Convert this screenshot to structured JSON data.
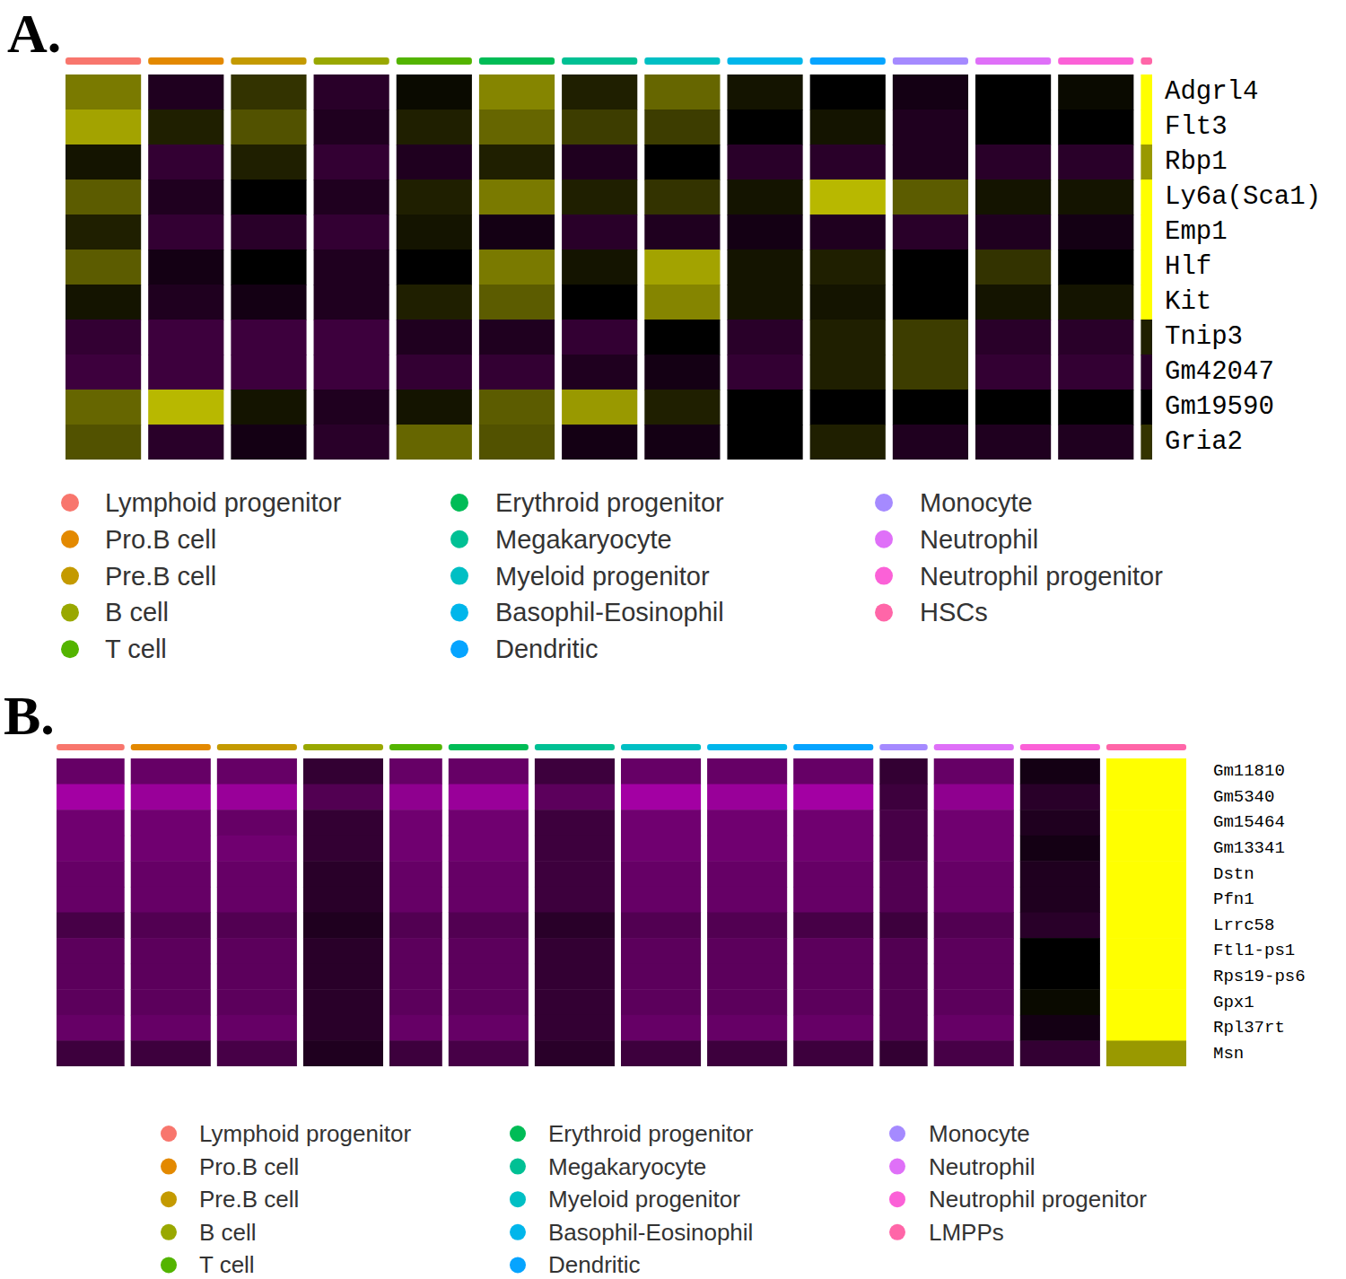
{
  "chart_data": [
    {
      "type": "heatmap",
      "title": "A.",
      "rows": [
        "Adgrl4",
        "Flt3",
        "Rbp1",
        "Ly6a(Sca1)",
        "Emp1",
        "Hlf",
        "Kit",
        "Tnip3",
        "Gm42047",
        "Gm19590",
        "Gria2"
      ],
      "columns": [
        "Lymphoid progenitor",
        "Pro.B cell",
        "Pre.B cell",
        "B cell",
        "T cell",
        "Erythroid progenitor",
        "Megakaryocyte",
        "Myeloid progenitor",
        "Basophil-Eosinophil",
        "Dendritic",
        "Monocyte",
        "Neutrophil",
        "Neutrophil progenitor",
        "HSCs"
      ],
      "colors": [
        "#F8766D",
        "#E38900",
        "#C49A00",
        "#99A800",
        "#53B400",
        "#00BC56",
        "#00C094",
        "#00BFC4",
        "#00B6EB",
        "#06A4FF",
        "#A58AFF",
        "#DF70F8",
        "#FB61D7",
        "#FF66A8"
      ],
      "cells_per_cluster": [
        100,
        100,
        100,
        100,
        100,
        100,
        100,
        100,
        100,
        100,
        100,
        100,
        100,
        15
      ],
      "color_range": [
        -2.5,
        2.5
      ],
      "color_scale": [
        "#FF00FF",
        "#000000",
        "#FFFF00"
      ],
      "cells": [
        [
          1.2,
          -0.3,
          0.5,
          -0.4,
          0.1,
          1.3,
          0.3,
          1.0,
          0.2,
          0.0,
          -0.2,
          0.0,
          0.1,
          2.5
        ],
        [
          1.6,
          0.3,
          0.8,
          -0.3,
          0.3,
          1.0,
          0.6,
          0.6,
          0.0,
          0.2,
          -0.3,
          0.0,
          0.0,
          2.5
        ],
        [
          0.2,
          -0.5,
          0.3,
          -0.5,
          -0.3,
          0.3,
          -0.3,
          0.0,
          -0.4,
          -0.4,
          -0.3,
          -0.4,
          -0.4,
          1.5
        ],
        [
          0.9,
          -0.3,
          0.0,
          -0.3,
          0.3,
          1.2,
          0.3,
          0.5,
          0.2,
          1.8,
          0.9,
          0.2,
          0.2,
          2.5
        ],
        [
          0.3,
          -0.5,
          -0.4,
          -0.5,
          0.2,
          -0.2,
          -0.4,
          -0.3,
          -0.2,
          -0.3,
          -0.4,
          -0.3,
          -0.2,
          2.5
        ],
        [
          0.9,
          -0.2,
          0.0,
          -0.3,
          0.0,
          1.2,
          0.2,
          1.6,
          0.2,
          0.3,
          0.0,
          0.5,
          0.0,
          2.5
        ],
        [
          0.2,
          -0.3,
          -0.2,
          -0.3,
          0.3,
          0.9,
          0.0,
          1.3,
          0.2,
          0.2,
          0.0,
          0.2,
          0.2,
          2.5
        ],
        [
          -0.5,
          -0.6,
          -0.6,
          -0.6,
          -0.3,
          -0.3,
          -0.5,
          0.0,
          -0.4,
          0.3,
          0.6,
          -0.4,
          -0.4,
          0.3
        ],
        [
          -0.6,
          -0.6,
          -0.6,
          -0.6,
          -0.5,
          -0.5,
          -0.3,
          -0.2,
          -0.5,
          0.3,
          0.6,
          -0.5,
          -0.5,
          -0.4
        ],
        [
          1.0,
          1.8,
          0.2,
          -0.3,
          0.2,
          0.9,
          1.5,
          0.3,
          0.0,
          0.0,
          0.0,
          0.0,
          0.0,
          0.0
        ],
        [
          0.8,
          -0.4,
          -0.2,
          -0.4,
          1.0,
          0.8,
          -0.2,
          -0.2,
          0.0,
          0.3,
          -0.3,
          -0.3,
          -0.3,
          0.5
        ]
      ]
    },
    {
      "type": "heatmap",
      "title": "B.",
      "rows": [
        "Gm11810",
        "Gm5340",
        "Gm15464",
        "Gm13341",
        "Dstn",
        "Pfn1",
        "Lrrc58",
        "Ftl1-ps1",
        "Rps19-ps6",
        "Gpx1",
        "Rpl37rt",
        "Msn"
      ],
      "columns": [
        "Lymphoid progenitor",
        "Pro.B cell",
        "Pre.B cell",
        "B cell",
        "T cell",
        "Erythroid progenitor",
        "Megakaryocyte",
        "Myeloid progenitor",
        "Basophil-Eosinophil",
        "Dendritic",
        "Monocyte",
        "Neutrophil",
        "Neutrophil progenitor",
        "LMPPs"
      ],
      "colors": [
        "#F8766D",
        "#E38900",
        "#C49A00",
        "#99A800",
        "#53B400",
        "#00BC56",
        "#00C094",
        "#00BFC4",
        "#00B6EB",
        "#06A4FF",
        "#A58AFF",
        "#DF70F8",
        "#FB61D7",
        "#FF66A8"
      ],
      "cells_per_cluster": [
        85,
        100,
        100,
        100,
        66,
        100,
        100,
        100,
        100,
        100,
        60,
        100,
        100,
        100
      ],
      "color_range": [
        -2.5,
        2.5
      ],
      "color_scale": [
        "#FF00FF",
        "#000000",
        "#FFFF00"
      ],
      "cells": [
        [
          -1.0,
          -1.0,
          -1.0,
          -0.5,
          -1.0,
          -1.0,
          -0.6,
          -1.0,
          -1.0,
          -1.0,
          -0.5,
          -1.0,
          -0.2,
          2.5
        ],
        [
          -1.6,
          -1.5,
          -1.5,
          -0.8,
          -1.4,
          -1.5,
          -0.9,
          -1.6,
          -1.5,
          -1.6,
          -0.6,
          -1.4,
          -0.4,
          2.5
        ],
        [
          -1.1,
          -1.1,
          -1.0,
          -0.5,
          -1.1,
          -1.1,
          -0.6,
          -1.1,
          -1.1,
          -1.1,
          -0.7,
          -1.1,
          -0.3,
          2.5
        ],
        [
          -1.1,
          -1.1,
          -1.1,
          -0.5,
          -1.1,
          -1.1,
          -0.6,
          -1.1,
          -1.1,
          -1.1,
          -0.7,
          -1.1,
          -0.2,
          2.5
        ],
        [
          -1.0,
          -1.0,
          -1.0,
          -0.4,
          -1.0,
          -1.0,
          -0.6,
          -1.0,
          -1.0,
          -1.0,
          -0.8,
          -1.0,
          -0.3,
          2.5
        ],
        [
          -1.0,
          -1.0,
          -1.0,
          -0.4,
          -1.0,
          -1.0,
          -0.6,
          -1.0,
          -1.0,
          -1.0,
          -0.8,
          -1.0,
          -0.3,
          2.5
        ],
        [
          -0.7,
          -0.8,
          -0.8,
          -0.3,
          -0.8,
          -0.8,
          -0.4,
          -0.8,
          -0.8,
          -0.7,
          -0.6,
          -0.8,
          -0.4,
          2.5
        ],
        [
          -0.9,
          -0.9,
          -0.9,
          -0.4,
          -0.9,
          -0.9,
          -0.5,
          -0.9,
          -0.9,
          -0.9,
          -0.8,
          -0.9,
          0.0,
          2.5
        ],
        [
          -0.9,
          -0.9,
          -0.9,
          -0.4,
          -0.9,
          -0.9,
          -0.5,
          -0.9,
          -0.9,
          -0.9,
          -0.8,
          -0.9,
          0.0,
          2.5
        ],
        [
          -0.9,
          -0.9,
          -0.9,
          -0.4,
          -0.9,
          -0.9,
          -0.5,
          -0.9,
          -0.9,
          -0.9,
          -0.8,
          -0.9,
          0.1,
          2.5
        ],
        [
          -1.0,
          -1.0,
          -1.0,
          -0.4,
          -1.0,
          -1.0,
          -0.5,
          -1.0,
          -1.0,
          -1.0,
          -0.8,
          -1.0,
          -0.2,
          2.5
        ],
        [
          -0.6,
          -0.6,
          -0.7,
          -0.3,
          -0.6,
          -0.7,
          -0.4,
          -0.6,
          -0.6,
          -0.6,
          -0.5,
          -0.7,
          -0.5,
          1.5
        ]
      ]
    }
  ]
}
